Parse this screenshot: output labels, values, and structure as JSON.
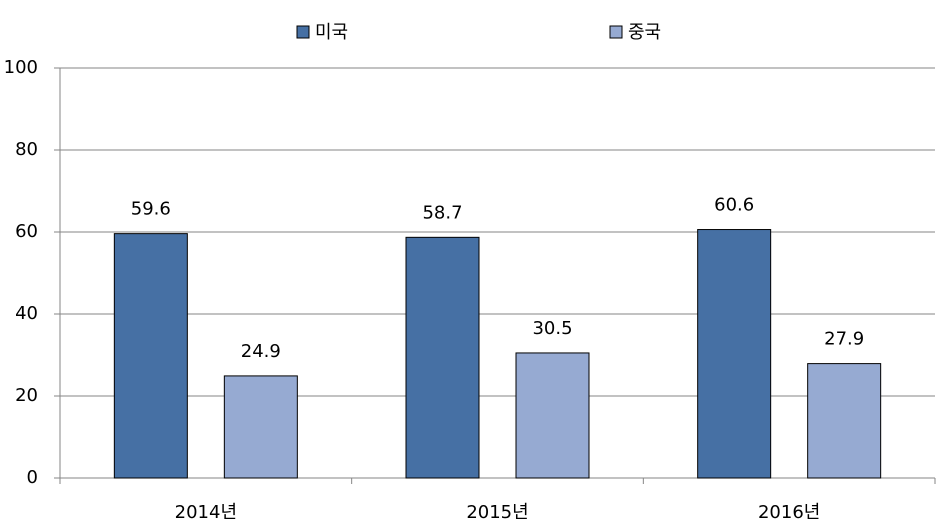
{
  "chart_data": {
    "type": "bar",
    "categories": [
      "2014년",
      "2015년",
      "2016년"
    ],
    "series": [
      {
        "name": "미국",
        "color": "#4670a4",
        "values": [
          59.6,
          58.7,
          60.6
        ]
      },
      {
        "name": "중국",
        "color": "#96aad2",
        "values": [
          24.9,
          30.5,
          27.9
        ]
      }
    ],
    "ylim": [
      0,
      100
    ],
    "yticks": [
      0,
      20,
      40,
      60,
      80,
      100
    ],
    "grid": true,
    "legend": "top"
  }
}
